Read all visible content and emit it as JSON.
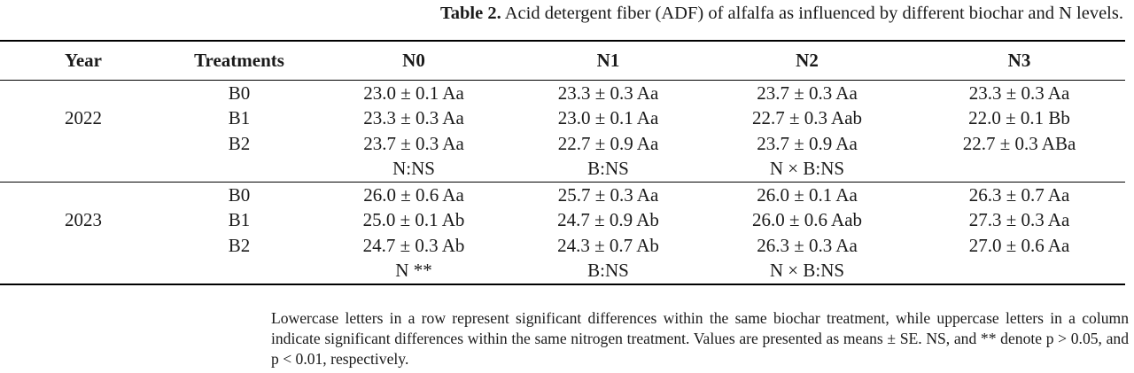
{
  "caption": {
    "label": "Table 2.",
    "text": "Acid detergent fiber (ADF) of alfalfa as influenced by different biochar and N levels."
  },
  "table": {
    "headers": [
      "Year",
      "Treatments",
      "N0",
      "N1",
      "N2",
      "N3"
    ],
    "groups": [
      {
        "year": "2022",
        "rows": [
          {
            "treatment": "B0",
            "values": [
              "23.0 ± 0.1 Aa",
              "23.3 ± 0.3 Aa",
              "23.7 ± 0.3 Aa",
              "23.3 ± 0.3 Aa"
            ]
          },
          {
            "treatment": "B1",
            "values": [
              "23.3 ± 0.3 Aa",
              "23.0 ± 0.1 Aa",
              "22.7 ± 0.3 Aab",
              "22.0 ± 0.1 Bb"
            ]
          },
          {
            "treatment": "B2",
            "values": [
              "23.7 ± 0.3 Aa",
              "22.7 ± 0.9 Aa",
              "23.7 ± 0.9 Aa",
              "22.7 ± 0.3 ABa"
            ]
          }
        ],
        "stats": [
          "N:NS",
          "B:NS",
          "N × B:NS",
          ""
        ]
      },
      {
        "year": "2023",
        "rows": [
          {
            "treatment": "B0",
            "values": [
              "26.0 ± 0.6 Aa",
              "25.7 ± 0.3 Aa",
              "26.0 ± 0.1 Aa",
              "26.3 ± 0.7 Aa"
            ]
          },
          {
            "treatment": "B1",
            "values": [
              "25.0 ± 0.1 Ab",
              "24.7 ± 0.9 Ab",
              "26.0 ± 0.6 Aab",
              "27.3 ± 0.3 Aa"
            ]
          },
          {
            "treatment": "B2",
            "values": [
              "24.7 ± 0.3 Ab",
              "24.3 ± 0.7 Ab",
              "26.3 ± 0.3 Aa",
              "27.0 ± 0.6 Aa"
            ]
          }
        ],
        "stats": [
          "N **",
          "B:NS",
          "N × B:NS",
          ""
        ]
      }
    ]
  },
  "note": {
    "text": "Lowercase letters in a row represent significant differences within the same biochar treatment, while uppercase letters in a column indicate significant differences within the same nitrogen treatment. Values are presented as means ± SE. NS, and ** denote p > 0.05, and p < 0.01, respectively."
  }
}
